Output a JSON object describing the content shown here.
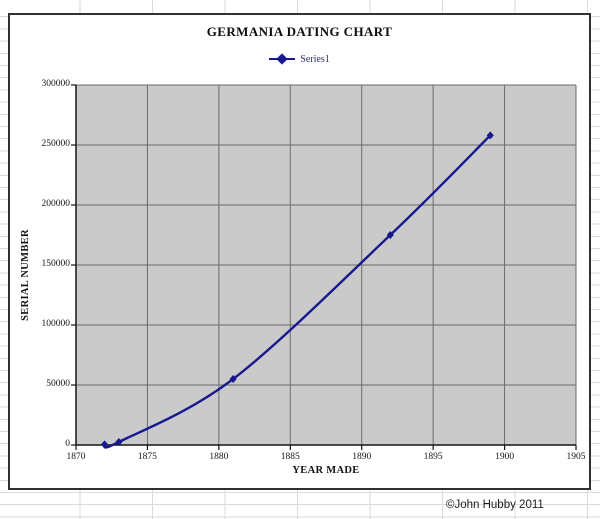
{
  "footer": {
    "credit": "©John Hubby 2011"
  },
  "chart": {
    "title": "GERMANIA DATING CHART",
    "legend_label": "Series1",
    "x_axis_title": "YEAR MADE",
    "y_axis_title": "SERIAL NUMBER",
    "colors": {
      "series": "#18188f",
      "plot_background": "#cacaca",
      "gridline": "#6b6b6b",
      "axis": "#141414",
      "chart_border": "#303030",
      "sheet_gridline": "#dadada",
      "legend_text": "#2b2b74"
    }
  },
  "chart_data": {
    "type": "line",
    "title": "GERMANIA DATING CHART",
    "xlabel": "YEAR MADE",
    "ylabel": "SERIAL NUMBER",
    "legend_position": "top",
    "grid": true,
    "plot_background": "gray",
    "xlim": [
      1870,
      1905
    ],
    "ylim": [
      0,
      300000
    ],
    "x_ticks": [
      1870,
      1875,
      1880,
      1885,
      1890,
      1895,
      1900,
      1905
    ],
    "y_ticks": [
      0,
      50000,
      100000,
      150000,
      200000,
      250000,
      300000
    ],
    "series": [
      {
        "name": "Series1",
        "x": [
          1872,
          1873,
          1881,
          1892,
          1899
        ],
        "y": [
          500,
          2500,
          55000,
          175000,
          258000
        ],
        "color": "#18188f",
        "marker": "diamond",
        "smoothed": true
      }
    ]
  }
}
